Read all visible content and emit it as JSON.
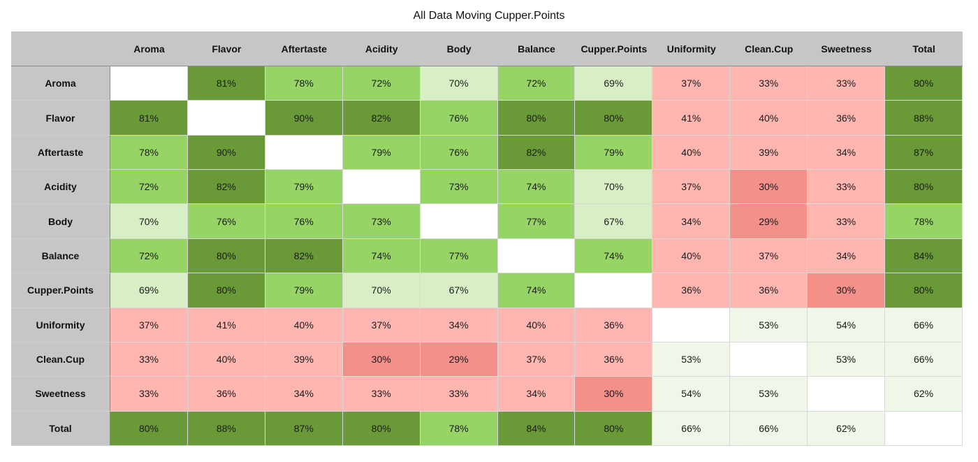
{
  "title": "All Data Moving Cupper.Points",
  "colors": {
    "strong_positive": "#6a9a37",
    "positive": "#96d465",
    "weak_positive": "#d8efc6",
    "neutral_light": "#eef7e8",
    "negative": "#ffb6b1",
    "strong_negative": "#f3908a",
    "empty": "#ffffff",
    "header": "#c6c6c6"
  },
  "chart_data": {
    "type": "heatmap",
    "title": "All Data Moving Cupper.Points",
    "columns": [
      "Aroma",
      "Flavor",
      "Aftertaste",
      "Acidity",
      "Body",
      "Balance",
      "Cupper.Points",
      "Uniformity",
      "Clean.Cup",
      "Sweetness",
      "Total"
    ],
    "rows": [
      "Aroma",
      "Flavor",
      "Aftertaste",
      "Acidity",
      "Body",
      "Balance",
      "Cupper.Points",
      "Uniformity",
      "Clean.Cup",
      "Sweetness",
      "Total"
    ],
    "values": [
      [
        null,
        "81%",
        "78%",
        "72%",
        "70%",
        "72%",
        "69%",
        "37%",
        "33%",
        "33%",
        "80%"
      ],
      [
        "81%",
        null,
        "90%",
        "82%",
        "76%",
        "80%",
        "80%",
        "41%",
        "40%",
        "36%",
        "88%"
      ],
      [
        "78%",
        "90%",
        null,
        "79%",
        "76%",
        "82%",
        "79%",
        "40%",
        "39%",
        "34%",
        "87%"
      ],
      [
        "72%",
        "82%",
        "79%",
        null,
        "73%",
        "74%",
        "70%",
        "37%",
        "30%",
        "33%",
        "80%"
      ],
      [
        "70%",
        "76%",
        "76%",
        "73%",
        null,
        "77%",
        "67%",
        "34%",
        "29%",
        "33%",
        "78%"
      ],
      [
        "72%",
        "80%",
        "82%",
        "74%",
        "77%",
        null,
        "74%",
        "40%",
        "37%",
        "34%",
        "84%"
      ],
      [
        "69%",
        "80%",
        "79%",
        "70%",
        "67%",
        "74%",
        null,
        "36%",
        "36%",
        "30%",
        "80%"
      ],
      [
        "37%",
        "41%",
        "40%",
        "37%",
        "34%",
        "40%",
        "36%",
        null,
        "53%",
        "54%",
        "66%"
      ],
      [
        "33%",
        "40%",
        "39%",
        "30%",
        "29%",
        "37%",
        "36%",
        "53%",
        null,
        "53%",
        "66%"
      ],
      [
        "33%",
        "36%",
        "34%",
        "33%",
        "33%",
        "34%",
        "30%",
        "54%",
        "53%",
        null,
        "62%"
      ],
      [
        "80%",
        "88%",
        "87%",
        "80%",
        "78%",
        "84%",
        "80%",
        "66%",
        "66%",
        "62%",
        null
      ]
    ],
    "value_range": [
      0,
      100
    ]
  }
}
